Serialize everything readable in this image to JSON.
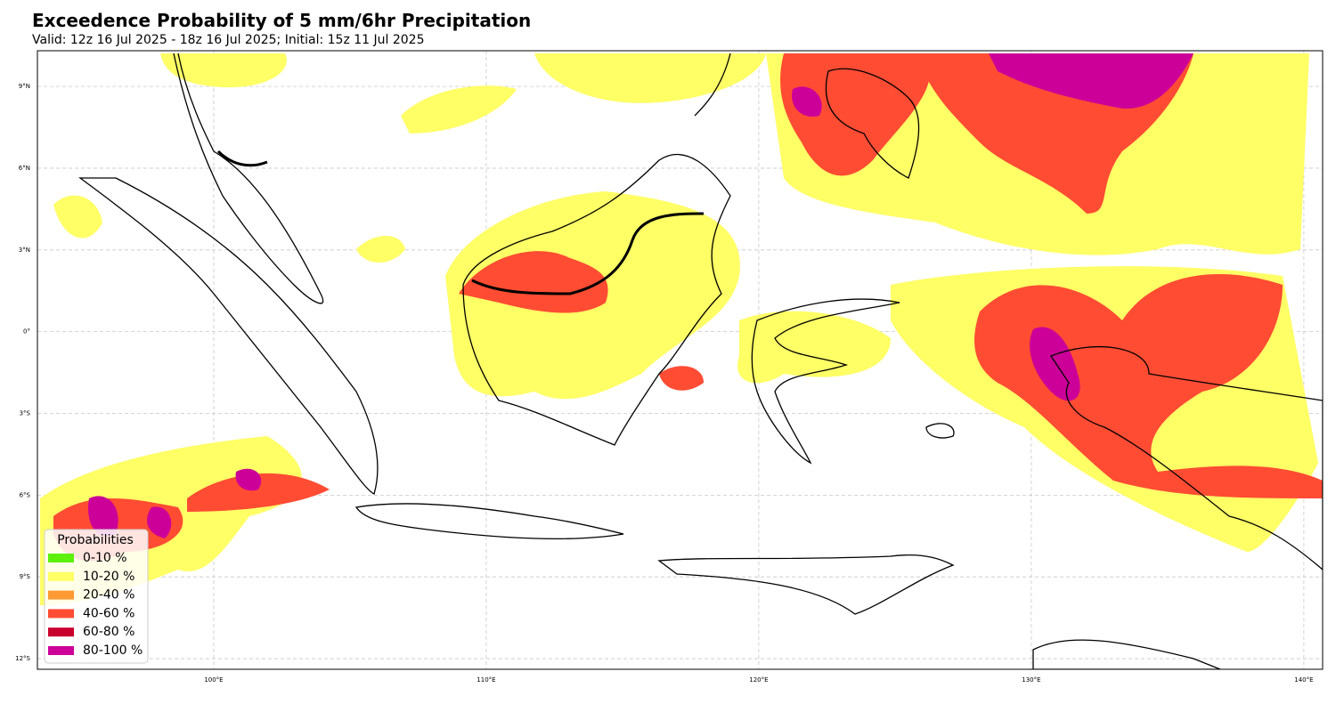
{
  "header": {
    "title": "Exceedence Probability of 5 mm/6hr Precipitation",
    "subtitle": "Valid: 12z 16 Jul 2025 - 18z 16 Jul 2025; Initial: 15z 11 Jul 2025"
  },
  "map": {
    "lonlim": [
      93.53,
      140.69
    ],
    "latlim": [
      -12.39,
      10.31
    ],
    "lonticks": [
      {
        "value": 100,
        "label": "100°E"
      },
      {
        "value": 110,
        "label": "110°E"
      },
      {
        "value": 120,
        "label": "120°E"
      },
      {
        "value": 130,
        "label": "130°E"
      },
      {
        "value": 140,
        "label": "140°E"
      }
    ],
    "latticks": [
      {
        "value": 9,
        "label": "9°N"
      },
      {
        "value": 6,
        "label": "6°N"
      },
      {
        "value": 3,
        "label": "3°N"
      },
      {
        "value": 0,
        "label": "0°"
      },
      {
        "value": -3,
        "label": "3°S"
      },
      {
        "value": -6,
        "label": "6°S"
      },
      {
        "value": -9,
        "label": "9°S"
      },
      {
        "value": -12,
        "label": "12°S"
      }
    ],
    "grid": true
  },
  "legend": {
    "title": "Probabilities",
    "items": [
      {
        "label": "0-10 %",
        "color": "#5cf00a"
      },
      {
        "label": "10-20 %",
        "color": "#ffff66"
      },
      {
        "label": "20-40 %",
        "color": "#ff9933"
      },
      {
        "label": "40-60 %",
        "color": "#ff4c33"
      },
      {
        "label": "60-80 %",
        "color": "#c8002d"
      },
      {
        "label": "80-100 %",
        "color": "#cc0099"
      }
    ]
  }
}
